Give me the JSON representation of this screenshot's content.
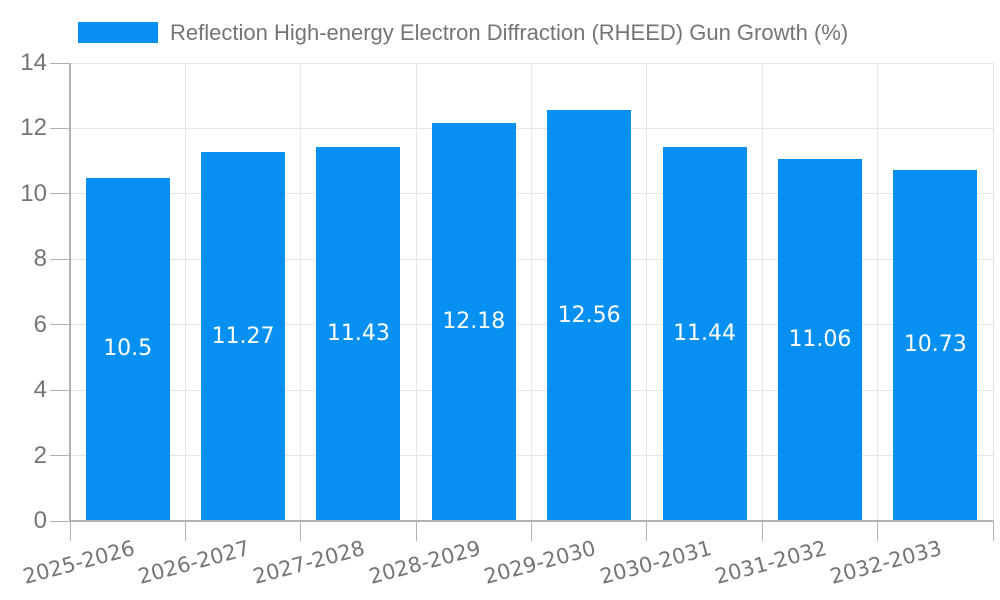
{
  "legend": {
    "label": "Reflection High-energy Electron Diffraction (RHEED) Gun Growth (%)"
  },
  "chart_data": {
    "type": "bar",
    "title": "",
    "series_name": "Reflection High-energy Electron Diffraction (RHEED) Gun Growth (%)",
    "categories": [
      "2025-2026",
      "2026-2027",
      "2027-2028",
      "2028-2029",
      "2029-2030",
      "2030-2031",
      "2031-2032",
      "2032-2033"
    ],
    "values": [
      10.5,
      11.27,
      11.43,
      12.18,
      12.56,
      11.44,
      11.06,
      10.73
    ],
    "value_labels": [
      "10.5",
      "11.27",
      "11.43",
      "12.18",
      "12.56",
      "11.44",
      "11.06",
      "10.73"
    ],
    "xlabel": "",
    "ylabel": "",
    "ylim": [
      0,
      14
    ],
    "yticks": [
      0,
      2,
      4,
      6,
      8,
      10,
      12,
      14
    ],
    "grid": true,
    "legend_position": "top",
    "colors": {
      "bar": "#0590F2",
      "value_label": "#FFFFFF",
      "axis_text": "#757575",
      "grid_line": "#E6E6E6",
      "axis_line": "#B2B2B2",
      "background": "#FFFFFF"
    }
  }
}
